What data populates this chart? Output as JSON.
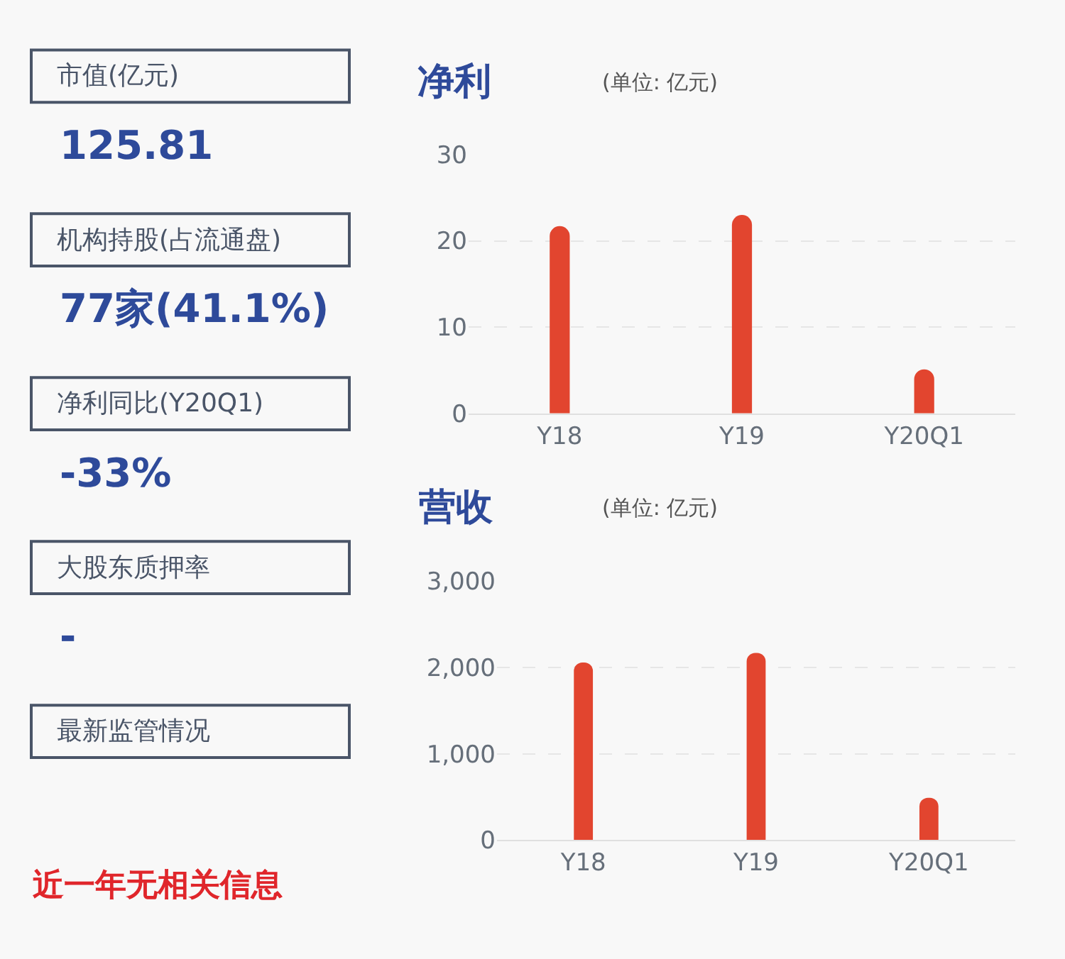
{
  "chart_data": [
    {
      "type": "other",
      "annotations": [
        "市值(亿元)",
        "125.81",
        "机构持股(占流通盘)",
        "77家(41.1%)",
        "净利同比(Y20Q1)",
        "-33%",
        "大股东质押率",
        "-",
        "最新监管情况",
        "近一年无相关信息"
      ]
    },
    {
      "type": "bar",
      "title": "净利",
      "subtitle": "(单位: 亿元)",
      "categories": [
        "Y18",
        "Y19",
        "Y20Q1"
      ],
      "values": [
        21.7,
        23.0,
        5.1
      ],
      "color": "#e2452f",
      "ylim": [
        0,
        30
      ],
      "yticks": [
        0,
        10,
        20,
        30
      ],
      "grid": "y"
    },
    {
      "type": "bar",
      "title": "营收",
      "subtitle": "(单位: 亿元)",
      "categories": [
        "Y18",
        "Y19",
        "Y20Q1"
      ],
      "values": [
        2060,
        2170,
        490
      ],
      "color": "#e2452f",
      "ylim": [
        0,
        3000
      ],
      "yticks": [
        {
          "value": 0,
          "label": "0"
        },
        {
          "value": 1000,
          "label": "1,000"
        },
        {
          "value": 2000,
          "label": "2,000"
        },
        {
          "value": 3000,
          "label": "3,000"
        }
      ],
      "grid": "y"
    }
  ]
}
